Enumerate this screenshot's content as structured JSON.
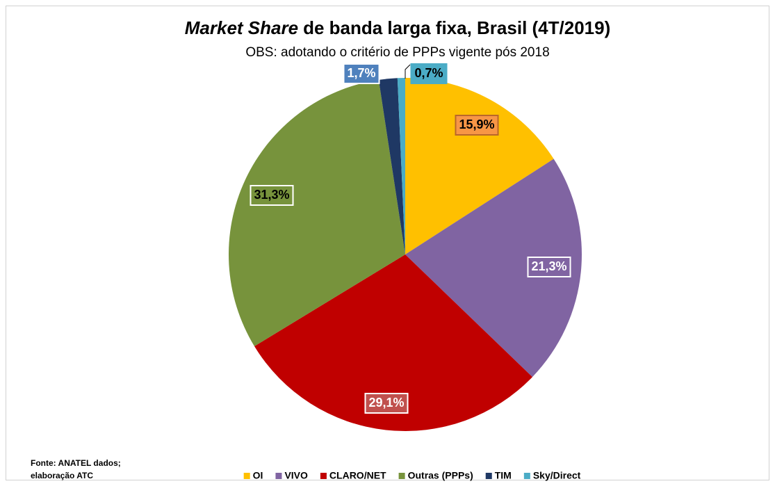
{
  "chart_data": {
    "type": "pie",
    "title": {
      "italic": "Market Share",
      "rest": "de banda larga fixa, Brasil (4T/2019)"
    },
    "subtitle": "OBS: adotando o critério de PPPs vigente pós 2018",
    "categories": [
      "OI",
      "VIVO",
      "CLARO/NET",
      "Outras (PPPs)",
      "TIM",
      "Sky/Direct"
    ],
    "values": [
      15.9,
      21.3,
      29.1,
      31.3,
      1.7,
      0.7
    ],
    "value_labels": [
      "15,9%",
      "21,3%",
      "29,1%",
      "31,3%",
      "1,7%",
      "0,7%"
    ],
    "colors": [
      "#ffc000",
      "#8064a2",
      "#c00000",
      "#77933c",
      "#1f3864",
      "#4bacc6"
    ],
    "legend": "bottom",
    "source": [
      "Fonte: ANATEL dados;",
      "elaboração ATC"
    ]
  }
}
